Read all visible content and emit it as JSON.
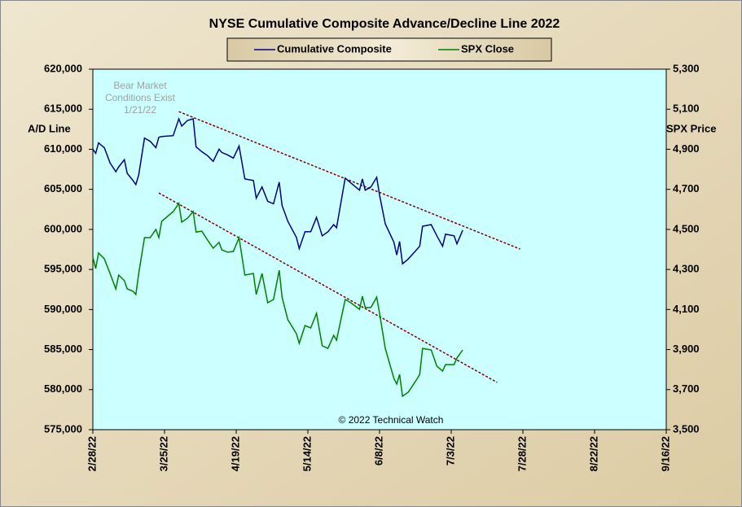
{
  "chart_data": {
    "type": "line",
    "title": "NYSE Cumulative  Composite  Advance/Decline  Line  2022",
    "y_label": "A/D Line",
    "y2_label": "SPX Price",
    "annotation": [
      "Bear Market",
      "Conditions  Exist",
      "1/21/22"
    ],
    "copyright": "© 2022 Technical  Watch",
    "grid": false,
    "legend": "top",
    "xlim": [
      "2/28/22",
      "9/16/22"
    ],
    "xticks": [
      "2/28/22",
      "3/25/22",
      "4/19/22",
      "5/14/22",
      "6/8/22",
      "7/3/22",
      "7/28/22",
      "8/22/22",
      "9/16/22"
    ],
    "ylim": [
      575000,
      620000
    ],
    "yticks": [
      {
        "value": 620000,
        "label": "620,000"
      },
      {
        "value": 615000,
        "label": "615,000"
      },
      {
        "value": 610000,
        "label": "610,000"
      },
      {
        "value": 605000,
        "label": "605,000"
      },
      {
        "value": 600000,
        "label": "600,000"
      },
      {
        "value": 595000,
        "label": "595,000"
      },
      {
        "value": 590000,
        "label": "590,000"
      },
      {
        "value": 585000,
        "label": "585,000"
      },
      {
        "value": 580000,
        "label": "580,000"
      },
      {
        "value": 575000,
        "label": "575,000"
      }
    ],
    "y2lim": [
      3500,
      5300
    ],
    "y2ticks": [
      {
        "value": 5300,
        "label": "5,300"
      },
      {
        "value": 5100,
        "label": "5,100"
      },
      {
        "value": 4900,
        "label": "4,900"
      },
      {
        "value": 4700,
        "label": "4,700"
      },
      {
        "value": 4500,
        "label": "4,500"
      },
      {
        "value": 4300,
        "label": "4,300"
      },
      {
        "value": 4100,
        "label": "4,100"
      },
      {
        "value": 3900,
        "label": "3,900"
      },
      {
        "value": 3700,
        "label": "3,700"
      },
      {
        "value": 3500,
        "label": "3,500"
      }
    ],
    "x": [
      "2/28/22",
      "3/1/22",
      "3/2/22",
      "3/4/22",
      "3/6/22",
      "3/8/22",
      "3/9/22",
      "3/11/22",
      "3/12/22",
      "3/14/22",
      "3/15/22",
      "3/16/22",
      "3/18/22",
      "3/20/22",
      "3/22/22",
      "3/23/22",
      "3/24/22",
      "3/28/22",
      "3/30/22",
      "3/31/22",
      "4/2/22",
      "4/4/22",
      "4/5/22",
      "4/7/22",
      "4/9/22",
      "4/11/22",
      "4/13/22",
      "4/14/22",
      "4/16/22",
      "4/18/22",
      "4/20/22",
      "4/22/22",
      "4/25/22",
      "4/26/22",
      "4/28/22",
      "4/30/22",
      "5/2/22",
      "5/4/22",
      "5/5/22",
      "5/7/22",
      "5/10/22",
      "5/11/22",
      "5/13/22",
      "5/15/22",
      "5/17/22",
      "5/19/22",
      "5/21/22",
      "5/23/22",
      "5/24/22",
      "5/27/22",
      "5/29/22",
      "6/1/22",
      "6/2/22",
      "6/3/22",
      "6/5/22",
      "6/7/22",
      "6/8/22",
      "6/10/22",
      "6/13/22",
      "6/14/22",
      "6/15/22",
      "6/16/22",
      "6/18/22",
      "6/21/22",
      "6/22/22",
      "6/23/22",
      "6/26/22",
      "6/28/22",
      "6/30/22",
      "7/1/22",
      "7/4/22",
      "7/5/22",
      "7/7/22"
    ],
    "series": [
      {
        "name": "Cumulative Composite",
        "color": "#000080",
        "axis": "y",
        "values": [
          610000,
          609500,
          610800,
          610200,
          608300,
          607200,
          607800,
          608700,
          607000,
          606100,
          605600,
          606800,
          611400,
          611000,
          610200,
          611500,
          611600,
          611700,
          613800,
          612900,
          613600,
          613800,
          610300,
          609700,
          609200,
          608500,
          610000,
          609600,
          609300,
          608900,
          610400,
          606300,
          606100,
          603900,
          605300,
          603500,
          603200,
          605900,
          603000,
          601000,
          599000,
          597600,
          599700,
          599700,
          601500,
          599200,
          599700,
          600600,
          600200,
          606400,
          605800,
          604900,
          606300,
          604900,
          605300,
          606500,
          604300,
          600700,
          598400,
          596800,
          598500,
          595700,
          596300,
          597500,
          597900,
          600400,
          600600,
          599200,
          597900,
          599400,
          599200,
          598200,
          599900
        ]
      },
      {
        "name": "SPX Close",
        "color": "#008000",
        "axis": "y2",
        "values": [
          4361,
          4305,
          4382,
          4353,
          4280,
          4203,
          4272,
          4244,
          4203,
          4191,
          4175,
          4280,
          4459,
          4459,
          4500,
          4459,
          4540,
          4589,
          4630,
          4536,
          4556,
          4589,
          4487,
          4491,
          4447,
          4406,
          4435,
          4398,
          4386,
          4390,
          4459,
          4272,
          4280,
          4175,
          4280,
          4134,
          4150,
          4296,
          4162,
          4049,
          3980,
          3931,
          4020,
          4008,
          4081,
          3919,
          3906,
          3971,
          3947,
          4150,
          4134,
          4101,
          4166,
          4110,
          4110,
          4162,
          4081,
          3906,
          3756,
          3728,
          3776,
          3667,
          3687,
          3752,
          3776,
          3906,
          3898,
          3817,
          3793,
          3825,
          3825,
          3858,
          3898
        ]
      }
    ],
    "trendlines": [
      {
        "color": "#800000",
        "axis": "y",
        "x": [
          "3/30/22",
          "7/27/22"
        ],
        "values": [
          614700,
          597550
        ]
      },
      {
        "color": "#800000",
        "axis": "y2",
        "x": [
          "3/23/22",
          "7/19/22"
        ],
        "values": [
          4682,
          3736
        ]
      }
    ]
  }
}
